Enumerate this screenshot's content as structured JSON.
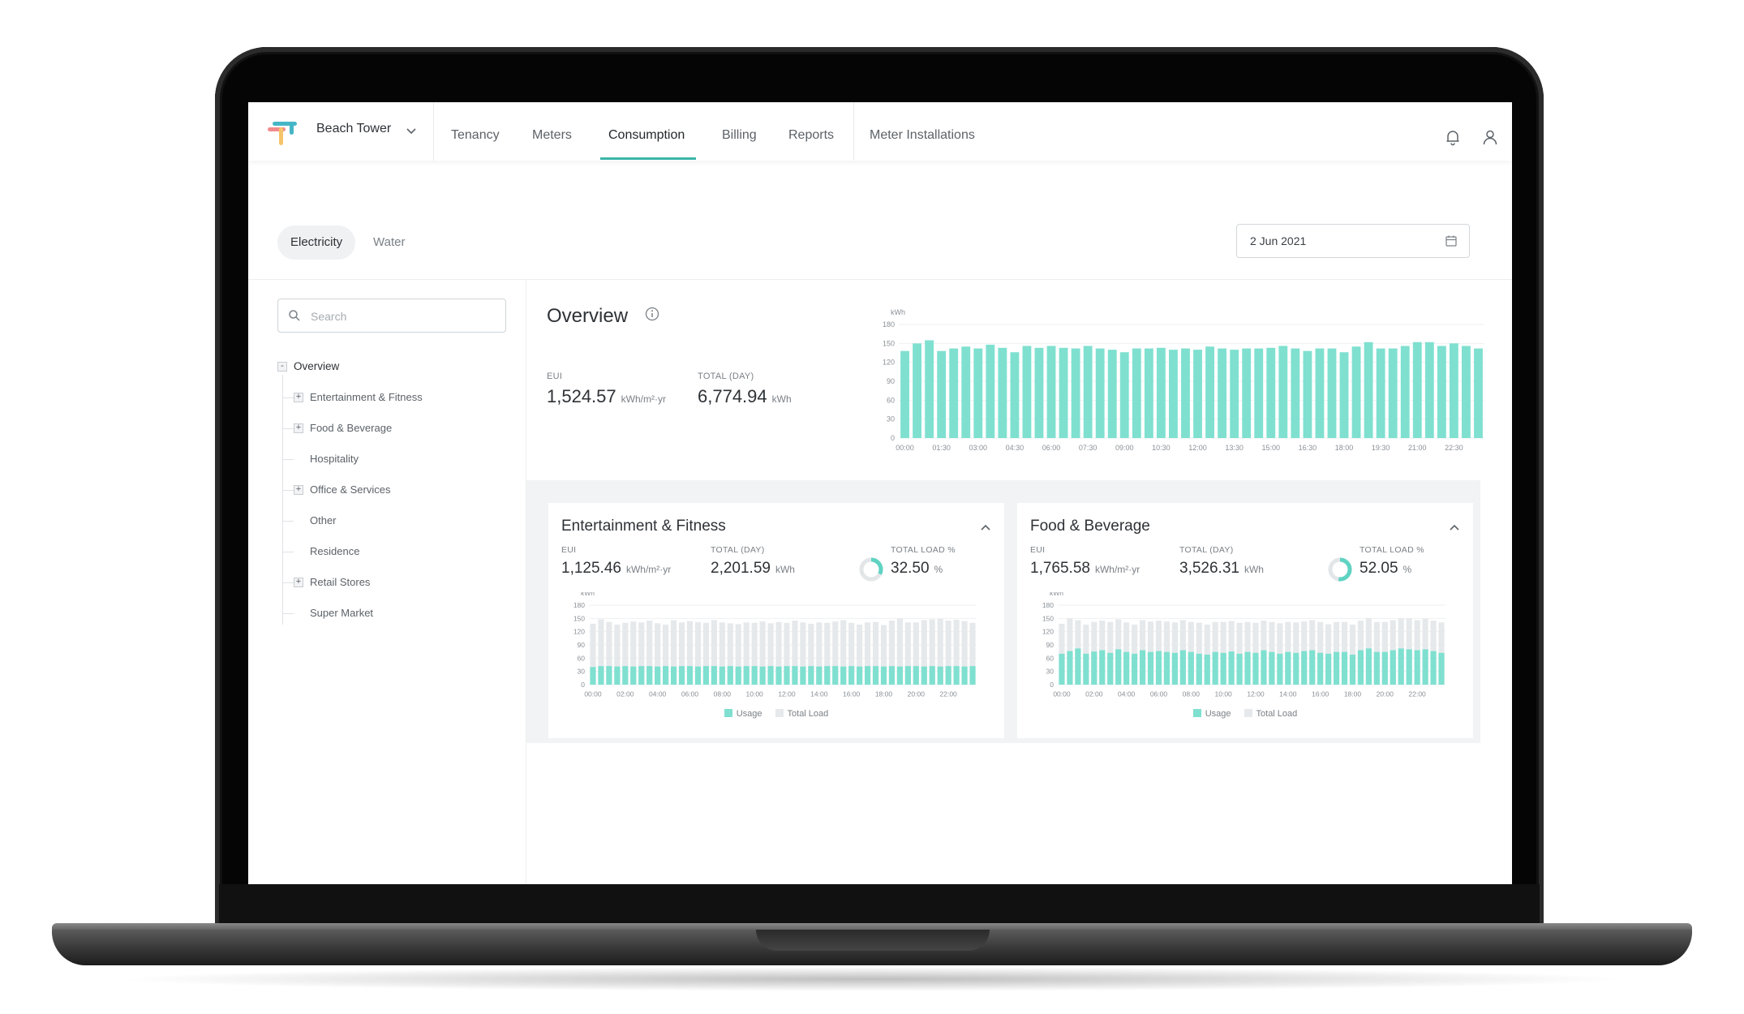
{
  "brand": {
    "name": "Beach Tower"
  },
  "nav": {
    "items": [
      {
        "label": "Tenancy",
        "active": false
      },
      {
        "label": "Meters",
        "active": false
      },
      {
        "label": "Consumption",
        "active": true
      },
      {
        "label": "Billing",
        "active": false
      },
      {
        "label": "Reports",
        "active": false
      },
      {
        "label": "Meter Installations",
        "active": false
      }
    ]
  },
  "icons": {
    "notifications": "bell-icon",
    "account": "user-icon",
    "calendar": "calendar-icon",
    "search": "search-icon",
    "info": "info-icon"
  },
  "utility_tabs": [
    {
      "label": "Electricity",
      "active": true
    },
    {
      "label": "Water",
      "active": false
    }
  ],
  "date": {
    "value": "2 Jun 2021"
  },
  "search": {
    "placeholder": "Search",
    "value": ""
  },
  "tree": {
    "root": {
      "label": "Overview",
      "toggle": "-"
    },
    "children": [
      {
        "label": "Entertainment & Fitness",
        "toggle": "+"
      },
      {
        "label": "Food & Beverage",
        "toggle": "+"
      },
      {
        "label": "Hospitality",
        "toggle": ""
      },
      {
        "label": "Office & Services",
        "toggle": "+"
      },
      {
        "label": "Other",
        "toggle": ""
      },
      {
        "label": "Residence",
        "toggle": ""
      },
      {
        "label": "Retail Stores",
        "toggle": "+"
      },
      {
        "label": "Super Market",
        "toggle": ""
      }
    ]
  },
  "overview": {
    "title": "Overview",
    "eui_label": "EUI",
    "eui_value": "1,524.57",
    "eui_unit": "kWh/m²·yr",
    "total_label": "TOTAL (DAY)",
    "total_value": "6,774.94",
    "total_unit": "kWh"
  },
  "cards": [
    {
      "title": "Entertainment & Fitness",
      "eui_label": "EUI",
      "eui_value": "1,125.46",
      "eui_unit": "kWh/m²·yr",
      "total_label": "TOTAL (DAY)",
      "total_value": "2,201.59",
      "total_unit": "kWh",
      "load_label": "TOTAL LOAD %",
      "load_value": "32.50",
      "load_unit": "%",
      "load_fraction": 0.325,
      "legend": {
        "usage": "Usage",
        "total": "Total Load"
      }
    },
    {
      "title": "Food & Beverage",
      "eui_label": "EUI",
      "eui_value": "1,765.58",
      "eui_unit": "kWh/m²·yr",
      "total_label": "TOTAL (DAY)",
      "total_value": "3,526.31",
      "total_unit": "kWh",
      "load_label": "TOTAL LOAD %",
      "load_value": "52.05",
      "load_unit": "%",
      "load_fraction": 0.5205,
      "legend": {
        "usage": "Usage",
        "total": "Total Load"
      }
    }
  ],
  "colors": {
    "accent": "#3bb5a8",
    "usage": "#7fe0d0",
    "total": "#e6e9eb"
  },
  "chart_data": [
    {
      "type": "bar",
      "ylabel": "kWh",
      "ylim": [
        0,
        180
      ],
      "yticks": [
        0,
        30,
        60,
        90,
        120,
        150,
        180
      ],
      "xtick_labels": [
        "00:00",
        "01:30",
        "03:00",
        "04:30",
        "06:00",
        "07:30",
        "09:00",
        "10:30",
        "12:00",
        "13:30",
        "15:00",
        "16:30",
        "18:00",
        "19:30",
        "21:00",
        "22:30"
      ],
      "values": [
        138,
        150,
        155,
        138,
        142,
        145,
        142,
        148,
        143,
        136,
        146,
        143,
        146,
        143,
        142,
        146,
        142,
        140,
        136,
        142,
        142,
        143,
        140,
        142,
        140,
        145,
        142,
        140,
        142,
        142,
        143,
        146,
        142,
        138,
        142,
        142,
        136,
        145,
        152,
        142,
        142,
        146,
        152,
        152,
        146,
        150,
        146,
        142
      ],
      "grid": true
    },
    {
      "type": "bar",
      "ylabel": "kWh",
      "ylim": [
        0,
        180
      ],
      "yticks": [
        0,
        30,
        60,
        90,
        120,
        150,
        180
      ],
      "xtick_labels": [
        "00:00",
        "02:00",
        "04:00",
        "06:00",
        "08:00",
        "10:00",
        "12:00",
        "14:00",
        "16:00",
        "18:00",
        "20:00",
        "22:00"
      ],
      "series": [
        {
          "name": "Usage",
          "values": [
            40,
            42,
            42,
            41,
            42,
            41,
            42,
            42,
            41,
            42,
            41,
            42,
            42,
            41,
            42,
            42,
            41,
            42,
            41,
            42,
            42,
            41,
            42,
            41,
            42,
            42,
            41,
            42,
            41,
            42,
            42,
            41,
            42,
            41,
            42,
            42,
            41,
            42,
            41,
            42,
            42,
            41,
            42,
            41,
            42,
            42,
            41,
            42
          ]
        },
        {
          "name": "Total Load",
          "values": [
            138,
            148,
            142,
            136,
            140,
            143,
            141,
            145,
            139,
            136,
            146,
            141,
            144,
            142,
            140,
            146,
            141,
            139,
            137,
            141,
            140,
            143,
            139,
            142,
            140,
            145,
            141,
            138,
            141,
            140,
            143,
            146,
            140,
            136,
            141,
            142,
            135,
            145,
            150,
            141,
            141,
            146,
            148,
            149,
            145,
            147,
            144,
            140
          ]
        }
      ],
      "grid": true
    },
    {
      "type": "bar",
      "ylabel": "kWh",
      "ylim": [
        0,
        180
      ],
      "yticks": [
        0,
        30,
        60,
        90,
        120,
        150,
        180
      ],
      "xtick_labels": [
        "00:00",
        "02:00",
        "04:00",
        "06:00",
        "08:00",
        "10:00",
        "12:00",
        "14:00",
        "16:00",
        "18:00",
        "20:00",
        "22:00"
      ],
      "series": [
        {
          "name": "Usage",
          "values": [
            70,
            76,
            82,
            70,
            75,
            78,
            72,
            80,
            74,
            70,
            78,
            74,
            76,
            74,
            72,
            78,
            74,
            70,
            68,
            74,
            72,
            75,
            70,
            74,
            72,
            78,
            74,
            70,
            74,
            72,
            76,
            78,
            72,
            70,
            74,
            74,
            68,
            78,
            82,
            74,
            74,
            78,
            82,
            80,
            78,
            80,
            76,
            72
          ]
        },
        {
          "name": "Total Load",
          "values": [
            138,
            150,
            146,
            136,
            142,
            145,
            142,
            148,
            141,
            136,
            146,
            143,
            145,
            143,
            141,
            146,
            142,
            140,
            136,
            142,
            142,
            144,
            140,
            142,
            140,
            145,
            142,
            139,
            142,
            141,
            143,
            146,
            142,
            137,
            142,
            142,
            136,
            145,
            151,
            142,
            142,
            146,
            150,
            150,
            146,
            149,
            145,
            141
          ]
        }
      ],
      "grid": true
    }
  ]
}
